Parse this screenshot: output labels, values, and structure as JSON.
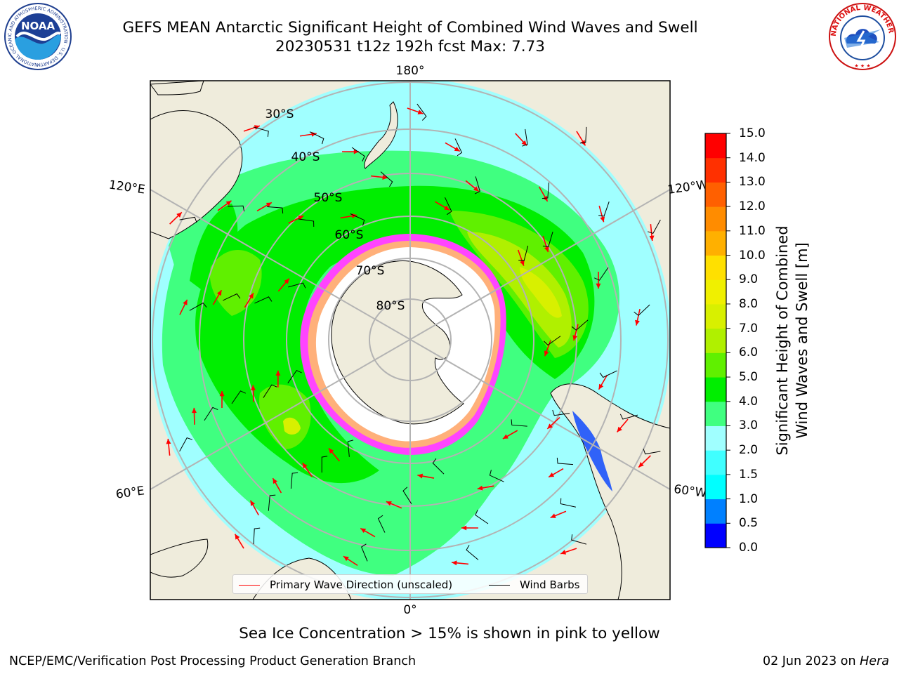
{
  "header": {
    "title_line1": "GEFS MEAN Antarctic Significant Height of Combined Wind Waves and Swell",
    "title_line2": "20230531 t12z 192h fcst   Max: 7.73"
  },
  "logos": {
    "noaa": {
      "text": "NOAA",
      "ring_text": "NATIONAL OCEANIC AND ATMOSPHERIC ADMINISTRATION · U.S. DEPARTMENT OF COMMERCE"
    },
    "nws": {
      "ring_text": "NATIONAL WEATHER SERVICE"
    }
  },
  "map": {
    "projection": "south-polar-stereographic",
    "longitude_labels": {
      "top": "180°",
      "bottom": "0°",
      "upper_left": "120°E",
      "upper_right": "120°W",
      "lower_left": "60°E",
      "lower_right": "60°W"
    },
    "latitude_labels": [
      "30°S",
      "40°S",
      "50°S",
      "60°S",
      "70°S",
      "80°S"
    ],
    "colors": {
      "land": "#efecdc",
      "ice_edge": "#ff44ff",
      "ice_inner": "#ffb07a",
      "wave_arrow": "#ff0000",
      "wind_barb": "#000000",
      "graticule": "#b3b3b3"
    }
  },
  "legend": {
    "wave_label": "Primary Wave Direction (unscaled)",
    "wind_label": "Wind Barbs",
    "wave_color": "#ff0000",
    "wind_color": "#000000"
  },
  "colorbar": {
    "label_line1": "Significant Height of Combined",
    "label_line2": "Wind Waves and Swell [m]",
    "ticks": [
      "0.0",
      "0.5",
      "1.0",
      "1.5",
      "2.0",
      "3.0",
      "4.0",
      "5.0",
      "6.0",
      "7.0",
      "8.0",
      "9.0",
      "10.0",
      "11.0",
      "12.0",
      "13.0",
      "14.0",
      "15.0"
    ],
    "colors": [
      "#0000ff",
      "#0080ff",
      "#00ffff",
      "#40ffff",
      "#a0ffff",
      "#40ff80",
      "#00ee00",
      "#60f000",
      "#b0f000",
      "#d8f000",
      "#f0f000",
      "#ffe000",
      "#ffb000",
      "#ff8c00",
      "#ff6000",
      "#ff3000",
      "#ff0000"
    ]
  },
  "footnote": "Sea Ice Concentration > 15% is shown in pink to yellow",
  "credits": {
    "left": "NCEP/EMC/Verification Post Processing Product Generation Branch",
    "right_date": "02 Jun 2023 on ",
    "right_host": "Hera"
  }
}
